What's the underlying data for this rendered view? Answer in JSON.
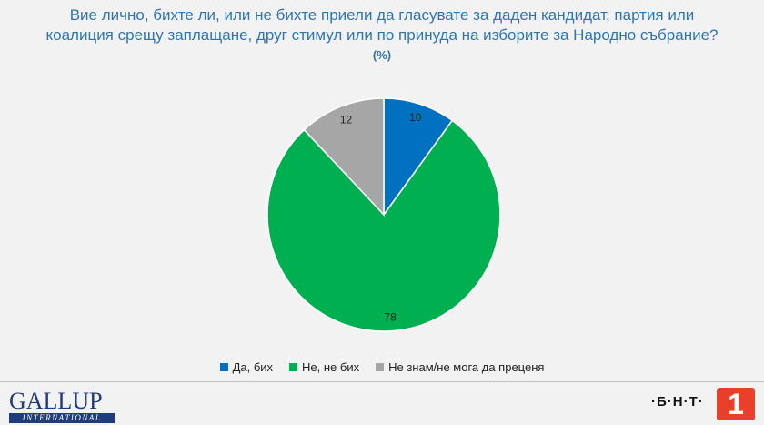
{
  "header": {
    "title_line1": "Вие лично, бихте ли, или не бихте приели да гласувате за даден кандидат, партия или",
    "title_line2": "коалиция срещу заплащане, друг стимул или по принуда на изборите за Народно събрание?",
    "subtitle": "(%)"
  },
  "chart_data": {
    "type": "pie",
    "title": "Вие лично, бихте ли, или не бихте приели да гласувате за даден кандидат, партия или коалиция срещу заплащане, друг стимул или по принуда на изборите за Народно събрание?",
    "subtitle": "(%)",
    "categories": [
      "Да, бих",
      "Не, не бих",
      "Не знам/не мога да преценя"
    ],
    "values": [
      10,
      78,
      12
    ],
    "colors": [
      "#0070c0",
      "#00b050",
      "#a6a6a6"
    ],
    "legend_position": "bottom"
  },
  "logos": {
    "gallup_word": "GALLUP",
    "gallup_sub": "INTERNATIONAL",
    "bnt_text": "·Б·Н·Т·",
    "bnt_number": "1"
  }
}
